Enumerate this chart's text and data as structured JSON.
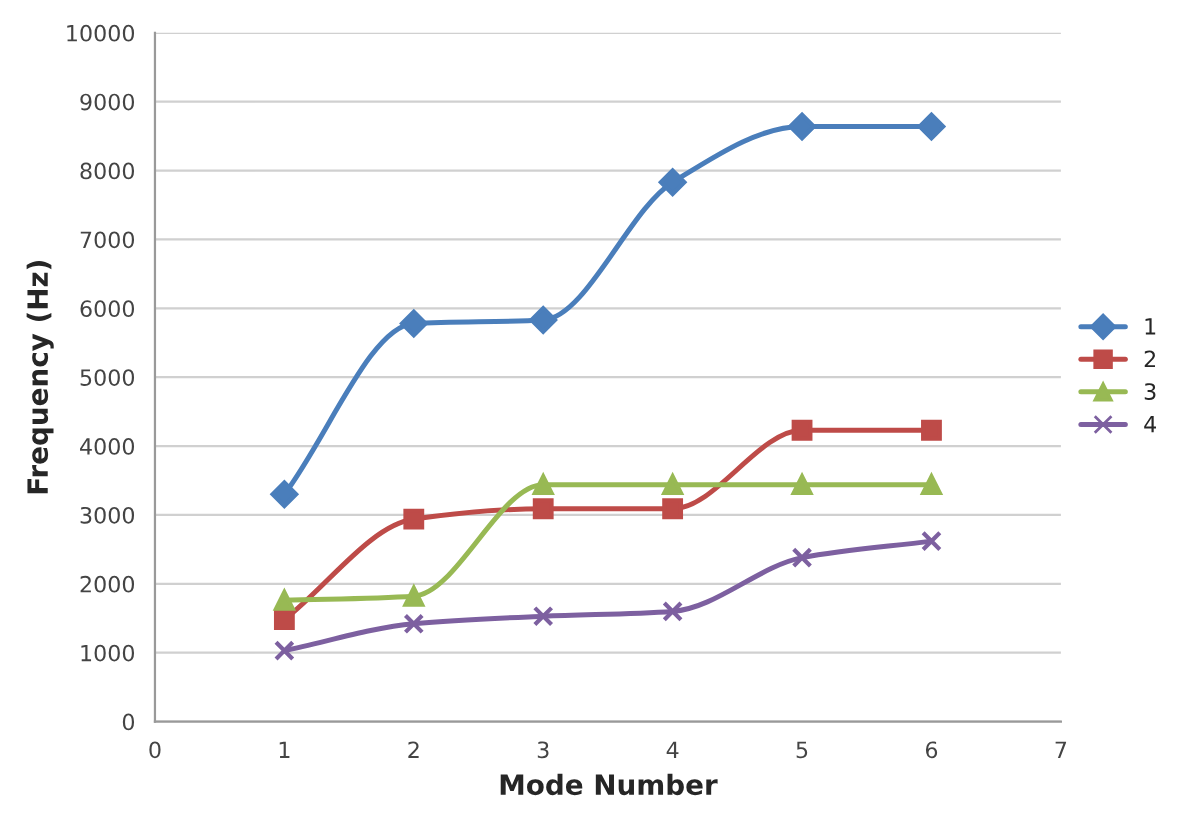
{
  "chart_data": {
    "type": "line",
    "xlabel": "Mode Number",
    "ylabel": "Frequency (Hz)",
    "x": [
      1,
      2,
      3,
      4,
      5,
      6
    ],
    "series": [
      {
        "name": "1",
        "color": "#4a7ebb",
        "marker": "diamond",
        "values": [
          3300,
          5780,
          5830,
          7830,
          8640,
          8640
        ]
      },
      {
        "name": "2",
        "color": "#be4b48",
        "marker": "square",
        "values": [
          1480,
          2940,
          3090,
          3090,
          4230,
          4230
        ]
      },
      {
        "name": "3",
        "color": "#98b954",
        "marker": "triangle",
        "values": [
          1760,
          1820,
          3440,
          3440,
          3440,
          3440
        ]
      },
      {
        "name": "4",
        "color": "#7d60a0",
        "marker": "cross",
        "values": [
          1030,
          1420,
          1530,
          1600,
          2380,
          2620
        ]
      }
    ],
    "xlim": [
      0,
      7
    ],
    "xticks": [
      0,
      1,
      2,
      3,
      4,
      5,
      6,
      7
    ],
    "ylim": [
      0,
      10000
    ],
    "yticks": [
      0,
      1000,
      2000,
      3000,
      4000,
      5000,
      6000,
      7000,
      8000,
      9000,
      10000
    ],
    "grid": "y",
    "legend": "right",
    "line_style": "solid"
  }
}
